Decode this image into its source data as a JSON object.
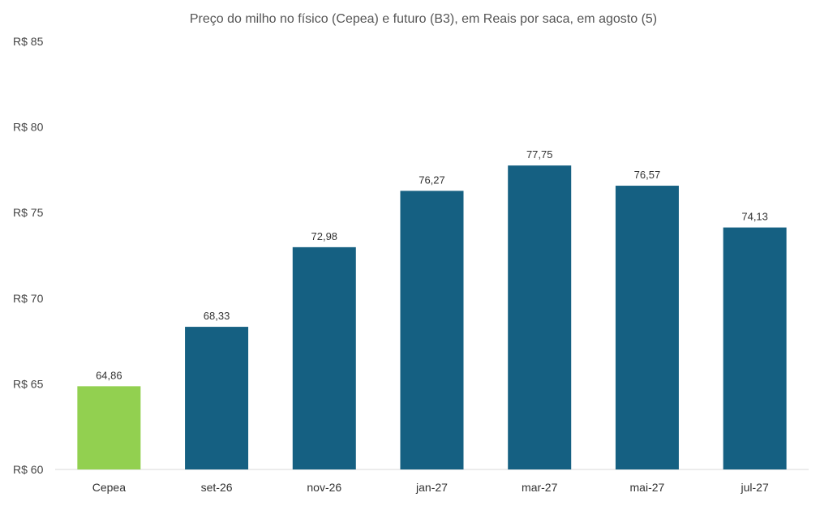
{
  "chart_data": {
    "type": "bar",
    "title": "Preço do milho no físico (Cepea) e futuro (B3), em Reais por saca, em agosto (5)",
    "categories": [
      "Cepea",
      "set-26",
      "nov-26",
      "jan-27",
      "mar-27",
      "mai-27",
      "jul-27"
    ],
    "values": [
      64.86,
      68.33,
      72.98,
      76.27,
      77.75,
      76.57,
      74.13
    ],
    "value_labels": [
      "64,86",
      "68,33",
      "72,98",
      "76,27",
      "77,75",
      "76,57",
      "74,13"
    ],
    "ylim": [
      60,
      85
    ],
    "yticks": [
      60,
      65,
      70,
      75,
      80,
      85
    ],
    "ytick_labels": [
      "R$ 60",
      "R$ 65",
      "R$ 70",
      "R$ 75",
      "R$ 80",
      "R$ 85"
    ],
    "grid": false,
    "colors": {
      "highlight": "#92d050",
      "bar": "#156082",
      "axis": "#d9d9d9"
    },
    "bar_colors": [
      "highlight",
      "bar",
      "bar",
      "bar",
      "bar",
      "bar",
      "bar"
    ]
  }
}
